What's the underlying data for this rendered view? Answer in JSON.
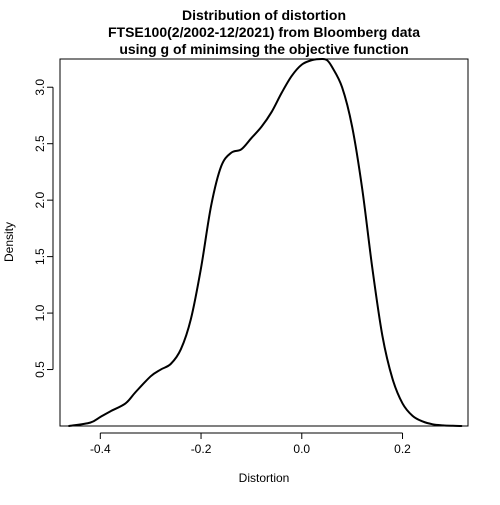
{
  "chart_data": {
    "type": "line",
    "title_lines": [
      "Distribution of distortion",
      "FTSE100(2/2002-12/2021) from Bloomberg data",
      "using g of minimsing the objective function"
    ],
    "xlabel": "Distortion",
    "ylabel": "Density",
    "xlim": [
      -0.48,
      0.33
    ],
    "ylim": [
      0.0,
      3.25
    ],
    "x_ticks": [
      -0.4,
      -0.2,
      0.0,
      0.2
    ],
    "x_tick_labels": [
      "-0.4",
      "-0.2",
      "0.0",
      "0.2"
    ],
    "y_ticks": [
      0.5,
      1.0,
      1.5,
      2.0,
      2.5,
      3.0
    ],
    "y_tick_labels": [
      "0.5",
      "1.0",
      "1.5",
      "2.0",
      "2.5",
      "3.0"
    ],
    "grid": false,
    "line_color": "#000000",
    "series": [
      {
        "x": [
          -0.462,
          -0.42,
          -0.4,
          -0.38,
          -0.35,
          -0.33,
          -0.3,
          -0.28,
          -0.26,
          -0.24,
          -0.22,
          -0.2,
          -0.18,
          -0.16,
          -0.14,
          -0.12,
          -0.1,
          -0.08,
          -0.06,
          -0.04,
          -0.02,
          0.0,
          0.02,
          0.04,
          0.05,
          0.06,
          0.08,
          0.1,
          0.12,
          0.14,
          0.16,
          0.18,
          0.2,
          0.22,
          0.24,
          0.26,
          0.28,
          0.3,
          0.317
        ],
        "y": [
          0.0,
          0.03,
          0.08,
          0.13,
          0.2,
          0.3,
          0.44,
          0.5,
          0.55,
          0.68,
          0.95,
          1.4,
          1.95,
          2.3,
          2.42,
          2.45,
          2.55,
          2.65,
          2.78,
          2.95,
          3.1,
          3.2,
          3.24,
          3.25,
          3.24,
          3.18,
          3.0,
          2.65,
          2.1,
          1.4,
          0.8,
          0.42,
          0.2,
          0.09,
          0.04,
          0.015,
          0.006,
          0.002,
          0.0
        ]
      }
    ]
  }
}
